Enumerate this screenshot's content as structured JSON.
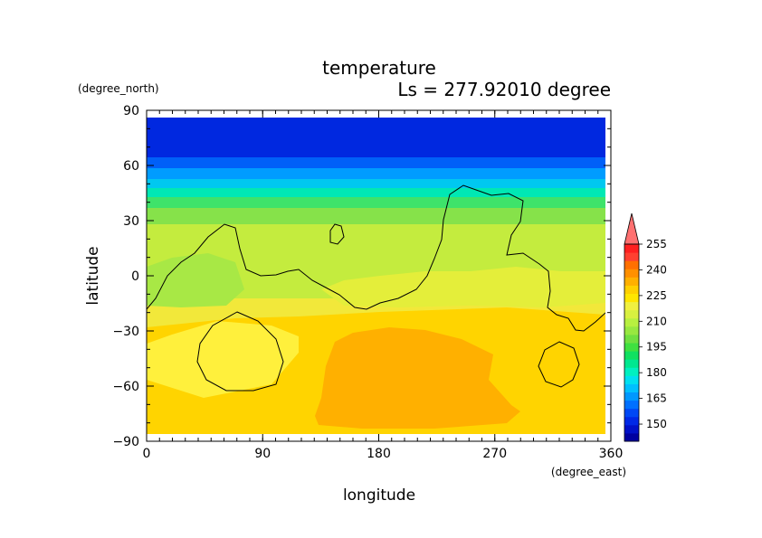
{
  "chart_data": {
    "type": "heatmap",
    "title": "temperature",
    "subtitle": "Ls = 277.92010 degree",
    "xlabel": "longitude",
    "ylabel": "latitude",
    "xunit": "(degree_east)",
    "yunit": "(degree_north)",
    "xlim": [
      0,
      360
    ],
    "ylim": [
      -90,
      90
    ],
    "xticks": [
      "0",
      "90",
      "180",
      "270",
      "360"
    ],
    "yticks": [
      "90",
      "60",
      "30",
      "0",
      "−30",
      "−60",
      "−90"
    ],
    "colorbar": {
      "levels": [
        140,
        145,
        150,
        155,
        160,
        165,
        170,
        175,
        180,
        185,
        190,
        195,
        200,
        205,
        210,
        215,
        220,
        225,
        230,
        235,
        240,
        245,
        250,
        255,
        260
      ],
      "labels": [
        "150",
        "165",
        "180",
        "195",
        "210",
        "225",
        "240",
        "255"
      ],
      "colors": [
        "#0000a0",
        "#0010c8",
        "#0028e6",
        "#0048f5",
        "#0070ff",
        "#0098ff",
        "#00c0ff",
        "#00e0f0",
        "#00f0c0",
        "#00e890",
        "#10e060",
        "#40e040",
        "#70e040",
        "#98e840",
        "#b8f040",
        "#d8f040",
        "#f0f040",
        "#ffe600",
        "#ffd000",
        "#ffb000",
        "#ff9000",
        "#ff7000",
        "#ff4030",
        "#ff2020",
        "#ff7070"
      ],
      "extend": "max"
    },
    "approx_field_description": "zonal bands: ~145-160 K north of 55N, steep gradient 35-60N, ~200-215 K between 0-35N, ~220-230 K in southern hemisphere, ~235-240 K in a warm region roughly 130-290E, 20-85S",
    "contour_level": "single black contour line overlaid"
  }
}
